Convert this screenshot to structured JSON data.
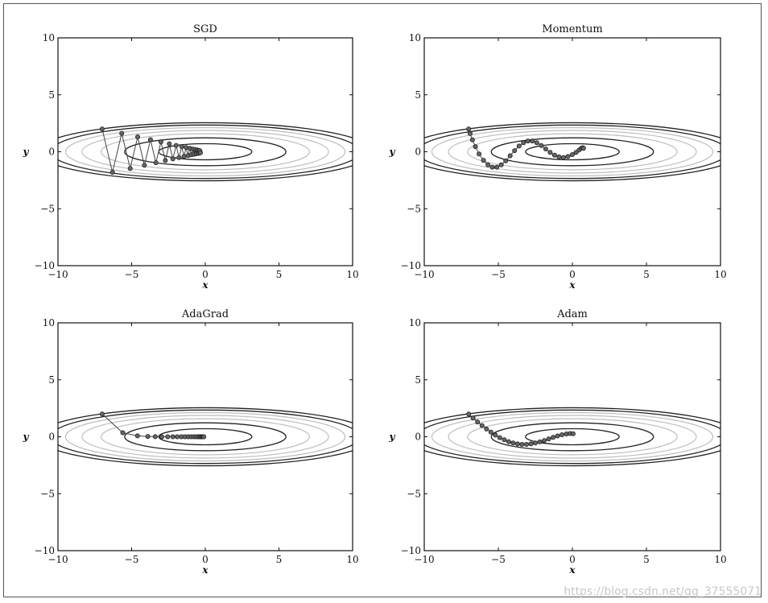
{
  "watermark": "https://blog.csdn.net/qq_37555071",
  "colors": {
    "axis": "#111111",
    "contour_dark": "#222222",
    "contour_light": "#bdbdbd",
    "path": "#444444",
    "marker_fill": "#666666"
  },
  "chart_data": [
    {
      "type": "line",
      "title": "SGD",
      "xlabel": "x",
      "ylabel": "y",
      "xlim": [
        -10,
        10
      ],
      "ylim": [
        -10,
        10
      ],
      "xticks": [
        -10,
        -5,
        0,
        5,
        10
      ],
      "yticks": [
        -10,
        -5,
        0,
        5,
        10
      ],
      "xticklabels": [
        "−10",
        "−5",
        "0",
        "5",
        "10"
      ],
      "yticklabels": [
        "−10",
        "−5",
        "0",
        "5",
        "10"
      ],
      "contour_function": "f(x,y) = x^2/20 + y^2",
      "contour_levels": [
        0.5,
        1.5,
        2.5,
        3.5,
        4.5,
        5.5,
        6.5
      ],
      "path": {
        "x": [
          -7.0,
          -6.3,
          -5.67,
          -5.1,
          -4.59,
          -4.13,
          -3.72,
          -3.35,
          -3.01,
          -2.71,
          -2.44,
          -2.2,
          -1.98,
          -1.78,
          -1.6,
          -1.44,
          -1.3,
          -1.17,
          -1.05,
          -0.95,
          -0.85,
          -0.77,
          -0.69,
          -0.62,
          -0.56,
          -0.5,
          -0.45,
          -0.41,
          -0.37,
          -0.33
        ],
        "y": [
          2.0,
          -1.8,
          1.62,
          -1.46,
          1.31,
          -1.18,
          1.06,
          -0.96,
          0.86,
          -0.77,
          0.7,
          -0.63,
          0.56,
          -0.51,
          0.46,
          -0.41,
          0.37,
          -0.33,
          0.3,
          -0.27,
          0.24,
          -0.22,
          0.2,
          -0.18,
          0.16,
          -0.14,
          0.13,
          -0.12,
          0.1,
          -0.09
        ]
      }
    },
    {
      "type": "line",
      "title": "Momentum",
      "xlabel": "x",
      "ylabel": "y",
      "xlim": [
        -10,
        10
      ],
      "ylim": [
        -10,
        10
      ],
      "xticks": [
        -10,
        -5,
        0,
        5,
        10
      ],
      "yticks": [
        -10,
        -5,
        0,
        5,
        10
      ],
      "xticklabels": [
        "−10",
        "−5",
        "0",
        "5",
        "10"
      ],
      "yticklabels": [
        "−10",
        "−5",
        "0",
        "5",
        "10"
      ],
      "contour_function": "f(x,y) = x^2/20 + y^2",
      "contour_levels": [
        0.5,
        1.5,
        2.5,
        3.5,
        4.5,
        5.5,
        6.5
      ],
      "path": {
        "x": [
          -7.0,
          -6.9,
          -6.75,
          -6.55,
          -6.3,
          -6.0,
          -5.7,
          -5.4,
          -5.1,
          -4.8,
          -4.5,
          -4.2,
          -3.9,
          -3.6,
          -3.3,
          -3.0,
          -2.7,
          -2.4,
          -2.1,
          -1.8,
          -1.5,
          -1.2,
          -0.9,
          -0.6,
          -0.3,
          0.0,
          0.25,
          0.45,
          0.6,
          0.7,
          0.75
        ],
        "y": [
          2.0,
          1.6,
          1.05,
          0.45,
          -0.2,
          -0.75,
          -1.15,
          -1.35,
          -1.35,
          -1.15,
          -0.8,
          -0.35,
          0.1,
          0.5,
          0.8,
          0.95,
          0.95,
          0.8,
          0.55,
          0.25,
          -0.05,
          -0.3,
          -0.45,
          -0.5,
          -0.42,
          -0.25,
          -0.05,
          0.15,
          0.3,
          0.35,
          0.3
        ]
      }
    },
    {
      "type": "line",
      "title": "AdaGrad",
      "xlabel": "x",
      "ylabel": "y",
      "xlim": [
        -10,
        10
      ],
      "ylim": [
        -10,
        10
      ],
      "xticks": [
        -10,
        -5,
        0,
        5,
        10
      ],
      "yticks": [
        -10,
        -5,
        0,
        5,
        10
      ],
      "xticklabels": [
        "−10",
        "−5",
        "0",
        "5",
        "10"
      ],
      "yticklabels": [
        "−10",
        "−5",
        "0",
        "5",
        "10"
      ],
      "contour_function": "f(x,y) = x^2/20 + y^2",
      "contour_levels": [
        0.5,
        1.5,
        2.5,
        3.5,
        4.5,
        5.5,
        6.5
      ],
      "path": {
        "x": [
          -7.0,
          -5.6,
          -4.6,
          -3.9,
          -3.4,
          -2.95,
          -2.55,
          -2.2,
          -1.9,
          -1.62,
          -1.38,
          -1.16,
          -0.97,
          -0.8,
          -0.65,
          -0.52,
          -0.41,
          -0.32,
          -0.25,
          -0.19,
          -0.14,
          -0.1
        ],
        "y": [
          2.0,
          0.35,
          0.08,
          0.03,
          0.01,
          0.0,
          0.0,
          0.0,
          0.0,
          0.0,
          0.0,
          0.0,
          0.0,
          0.0,
          0.0,
          0.0,
          0.0,
          0.0,
          0.0,
          0.0,
          0.0,
          0.0
        ]
      }
    },
    {
      "type": "line",
      "title": "Adam",
      "xlabel": "x",
      "ylabel": "y",
      "xlim": [
        -10,
        10
      ],
      "ylim": [
        -10,
        10
      ],
      "xticks": [
        -10,
        -5,
        0,
        5,
        10
      ],
      "yticks": [
        -10,
        -5,
        0,
        5,
        10
      ],
      "xticklabels": [
        "−10",
        "−5",
        "0",
        "5",
        "10"
      ],
      "yticklabels": [
        "−10",
        "−5",
        "0",
        "5",
        "10"
      ],
      "contour_function": "f(x,y) = x^2/20 + y^2",
      "contour_levels": [
        0.5,
        1.5,
        2.5,
        3.5,
        4.5,
        5.5,
        6.5
      ],
      "path": {
        "x": [
          -7.0,
          -6.7,
          -6.4,
          -6.1,
          -5.8,
          -5.5,
          -5.2,
          -4.9,
          -4.6,
          -4.3,
          -4.0,
          -3.7,
          -3.4,
          -3.1,
          -2.8,
          -2.5,
          -2.2,
          -1.9,
          -1.6,
          -1.3,
          -1.0,
          -0.7,
          -0.4,
          -0.15,
          0.05
        ],
        "y": [
          2.0,
          1.65,
          1.3,
          0.98,
          0.68,
          0.4,
          0.15,
          -0.08,
          -0.27,
          -0.43,
          -0.55,
          -0.63,
          -0.67,
          -0.67,
          -0.63,
          -0.55,
          -0.45,
          -0.33,
          -0.2,
          -0.06,
          0.07,
          0.18,
          0.25,
          0.28,
          0.27
        ]
      }
    }
  ]
}
